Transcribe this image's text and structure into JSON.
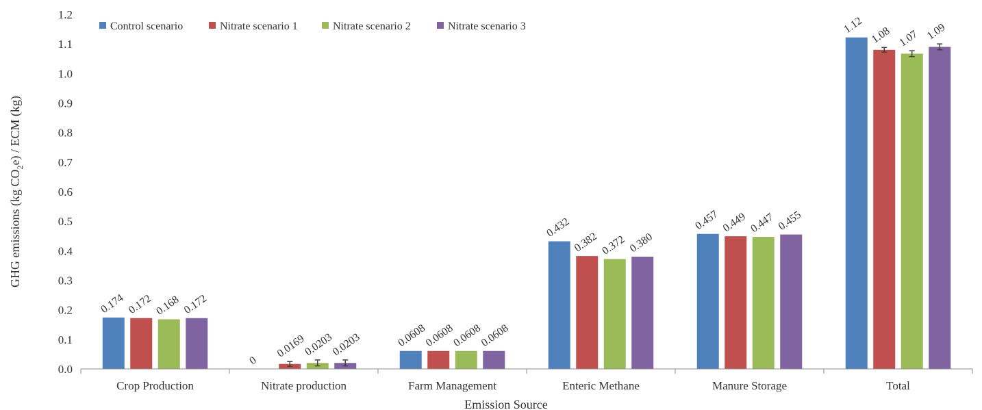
{
  "chart_data": {
    "type": "bar",
    "title": "",
    "xlabel": "Emission Source",
    "ylabel_parts": [
      "GHG emissions (kg CO",
      "2",
      "e) / ECM (kg)"
    ],
    "ylim": [
      0,
      1.2
    ],
    "yticks": [
      "0.0",
      "0.1",
      "0.2",
      "0.3",
      "0.4",
      "0.5",
      "0.6",
      "0.7",
      "0.8",
      "0.9",
      "1.0",
      "1.1",
      "1.2"
    ],
    "grid": false,
    "legend_position": "top-left",
    "categories": [
      "Crop Production",
      "Nitrate production",
      "Farm Management",
      "Enteric Methane",
      "Manure Storage",
      "Total"
    ],
    "series": [
      {
        "name": "Control scenario",
        "color": "#4f81bd",
        "values": [
          0.174,
          0,
          0.0608,
          0.432,
          0.457,
          1.122
        ],
        "labels": [
          "0.174",
          "0",
          "0.0608",
          "0.432",
          "0.457",
          "1.12"
        ],
        "errors": [
          0,
          0,
          0,
          0,
          0,
          0
        ]
      },
      {
        "name": "Nitrate scenario 1",
        "color": "#c0504d",
        "values": [
          0.172,
          0.0169,
          0.0608,
          0.382,
          0.449,
          1.08
        ],
        "labels": [
          "0.172",
          "0.0169",
          "0.0608",
          "0.382",
          "0.449",
          "1.08"
        ],
        "errors": [
          0,
          0.008,
          0,
          0,
          0,
          0.008
        ]
      },
      {
        "name": "Nitrate scenario 2",
        "color": "#9bbb59",
        "values": [
          0.168,
          0.0203,
          0.0608,
          0.372,
          0.447,
          1.067
        ],
        "labels": [
          "0.168",
          "0.0203",
          "0.0608",
          "0.372",
          "0.447",
          "1.07"
        ],
        "errors": [
          0,
          0.01,
          0,
          0,
          0,
          0.01
        ]
      },
      {
        "name": "Nitrate scenario 3",
        "color": "#8064a2",
        "values": [
          0.172,
          0.0203,
          0.0608,
          0.38,
          0.455,
          1.09
        ],
        "labels": [
          "0.172",
          "0.0203",
          "0.0608",
          "0.380",
          "0.455",
          "1.09"
        ],
        "errors": [
          0,
          0.01,
          0,
          0,
          0,
          0.01
        ]
      }
    ]
  }
}
